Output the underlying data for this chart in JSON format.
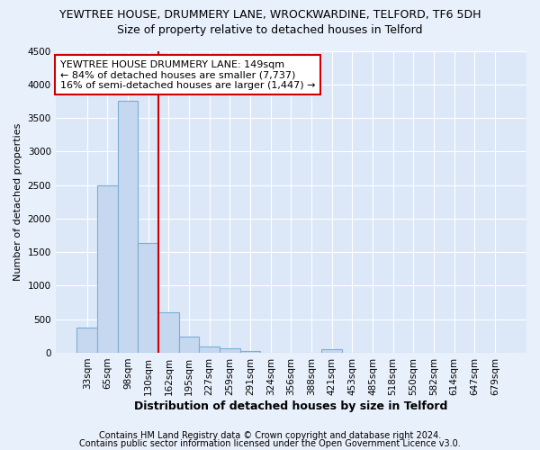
{
  "title1": "YEWTREE HOUSE, DRUMMERY LANE, WROCKWARDINE, TELFORD, TF6 5DH",
  "title2": "Size of property relative to detached houses in Telford",
  "xlabel": "Distribution of detached houses by size in Telford",
  "ylabel": "Number of detached properties",
  "categories": [
    "33sqm",
    "65sqm",
    "98sqm",
    "130sqm",
    "162sqm",
    "195sqm",
    "227sqm",
    "259sqm",
    "291sqm",
    "324sqm",
    "356sqm",
    "388sqm",
    "421sqm",
    "453sqm",
    "485sqm",
    "518sqm",
    "550sqm",
    "582sqm",
    "614sqm",
    "647sqm",
    "679sqm"
  ],
  "values": [
    375,
    2500,
    3750,
    1640,
    600,
    240,
    100,
    60,
    30,
    0,
    0,
    0,
    50,
    0,
    0,
    0,
    0,
    0,
    0,
    0,
    0
  ],
  "bar_color": "#c5d8f0",
  "bar_edge_color": "#7aafd4",
  "vline_color": "#cc0000",
  "vline_x": 3.5,
  "annotation_text": "YEWTREE HOUSE DRUMMERY LANE: 149sqm\n← 84% of detached houses are smaller (7,737)\n16% of semi-detached houses are larger (1,447) →",
  "annotation_box_color": "#ffffff",
  "annotation_box_edge": "#cc0000",
  "ylim": [
    0,
    4500
  ],
  "yticks": [
    0,
    500,
    1000,
    1500,
    2000,
    2500,
    3000,
    3500,
    4000,
    4500
  ],
  "footer1": "Contains HM Land Registry data © Crown copyright and database right 2024.",
  "footer2": "Contains public sector information licensed under the Open Government Licence v3.0.",
  "fig_bg_color": "#e8f0fb",
  "plot_bg_color": "#dce8f8",
  "grid_color": "#ffffff",
  "title1_fontsize": 9,
  "title2_fontsize": 9,
  "xlabel_fontsize": 9,
  "ylabel_fontsize": 8,
  "tick_fontsize": 7.5,
  "ann_fontsize": 8,
  "footer_fontsize": 7
}
